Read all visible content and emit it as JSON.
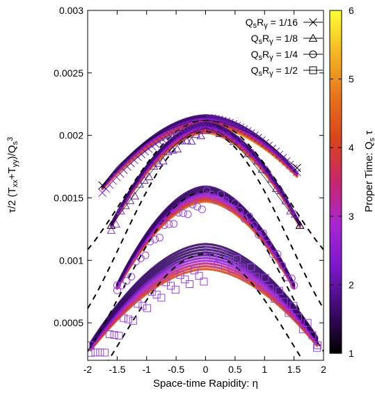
{
  "chart_data": {
    "type": "scatter",
    "xlabel": "Space-time Rapidity: η",
    "ylabel_parts": [
      "τ/2 (T",
      "xx",
      "+T",
      "yy",
      ")/Q",
      "s",
      "3"
    ],
    "colorbar_label_parts": [
      "Proper Time: Q",
      "s",
      " τ"
    ],
    "xlim": [
      -2,
      2
    ],
    "ylim": [
      0.0002,
      0.003
    ],
    "x_ticks": [
      -2,
      -1.5,
      -1,
      -0.5,
      0,
      0.5,
      1,
      1.5,
      2
    ],
    "x_tick_labels": [
      "-2",
      "-1.5",
      "-1",
      "-0.5",
      "0",
      "0.5",
      "1",
      "1.5",
      "2"
    ],
    "y_ticks": [
      0.0005,
      0.001,
      0.0015,
      0.002,
      0.0025,
      0.003
    ],
    "y_tick_labels": [
      "0.0005",
      "0.001",
      "0.0015",
      "0.002",
      "0.0025",
      "0.003"
    ],
    "colorbar": {
      "range": [
        1,
        6
      ],
      "ticks": [
        1,
        2,
        3,
        4,
        5,
        6
      ],
      "tick_labels": [
        "1",
        "2",
        "3",
        "4",
        "5",
        "6"
      ],
      "colors": [
        "#000000",
        "#3b0a6b",
        "#7a17c9",
        "#a826d3",
        "#c8266b",
        "#d9441a",
        "#e8741c",
        "#f5b623",
        "#ffff33"
      ]
    },
    "legend_position": "top-right",
    "series": [
      {
        "name_parts": [
          "Q",
          "s",
          "R",
          "γ",
          " = 1/16"
        ],
        "marker": "cross",
        "eta_range": [
          -1.75,
          1.55
        ],
        "peak": 0.00212,
        "edge": 0.00158,
        "band_width": 4e-05,
        "x": [
          -1.75,
          -1.5,
          -1.25,
          -1,
          -0.75,
          -0.5,
          -0.25,
          0,
          0.25,
          0.5,
          0.75,
          1,
          1.25,
          1.5,
          1.55
        ],
        "y": [
          0.0016,
          0.00175,
          0.00186,
          0.00195,
          0.00202,
          0.00207,
          0.00211,
          0.00212,
          0.00211,
          0.00207,
          0.00202,
          0.00195,
          0.00186,
          0.00176,
          0.00174
        ],
        "fit": {
          "peak": 0.00212,
          "curvature": 0.00038,
          "range": [
            -2,
            2
          ]
        }
      },
      {
        "name_parts": [
          "Q",
          "s",
          "R",
          "γ",
          " = 1/8"
        ],
        "marker": "triangle",
        "eta_range": [
          -1.6,
          1.6
        ],
        "peak": 0.00206,
        "edge": 0.00128,
        "band_width": 4e-05,
        "x": [
          -1.6,
          -1.25,
          -1,
          -0.75,
          -0.5,
          -0.25,
          0,
          0.25,
          0.5,
          0.75,
          1,
          1.25,
          1.6
        ],
        "y": [
          0.00128,
          0.0015,
          0.00166,
          0.00181,
          0.00193,
          0.00202,
          0.00206,
          0.00202,
          0.00193,
          0.00181,
          0.00166,
          0.0015,
          0.00128
        ],
        "fit": {
          "peak": 0.00203,
          "curvature": 0.00052,
          "range": [
            -2,
            2
          ]
        }
      },
      {
        "name_parts": [
          "Q",
          "s",
          "R",
          "γ",
          " = 1/4"
        ],
        "marker": "circle",
        "eta_range": [
          -1.5,
          1.5
        ],
        "peak": 0.00153,
        "edge": 0.00079,
        "band_width": 6e-05,
        "x": [
          -1.5,
          -1.25,
          -1,
          -0.75,
          -0.5,
          -0.25,
          0,
          0.25,
          0.5,
          0.75,
          1,
          1.25,
          1.5
        ],
        "y": [
          0.0008,
          0.00098,
          0.00113,
          0.00128,
          0.00141,
          0.0015,
          0.00153,
          0.0015,
          0.00141,
          0.00128,
          0.00113,
          0.00098,
          0.0008
        ],
        "fit": {
          "peak": 0.00155,
          "curvature": 0.00047,
          "range": [
            -2,
            2
          ]
        }
      },
      {
        "name_parts": [
          "Q",
          "s",
          "R",
          "γ",
          " = 1/2"
        ],
        "marker": "square",
        "eta_range": [
          -1.95,
          1.9
        ],
        "peak": 0.00103,
        "edge": 0.00031,
        "band_width": 0.0001,
        "x": [
          -1.95,
          -1.5,
          -1.25,
          -1,
          -0.75,
          -0.5,
          -0.25,
          0,
          0.25,
          0.5,
          0.75,
          1,
          1.25,
          1.5,
          1.9
        ],
        "y": [
          0.00032,
          0.00044,
          0.00054,
          0.00065,
          0.00078,
          0.0009,
          0.001,
          0.00103,
          0.001,
          0.0009,
          0.00078,
          0.00065,
          0.00054,
          0.00044,
          0.00032
        ],
        "fit": {
          "peak": 0.00105,
          "curvature": 0.0004,
          "range": [
            -2,
            2
          ]
        }
      }
    ]
  }
}
